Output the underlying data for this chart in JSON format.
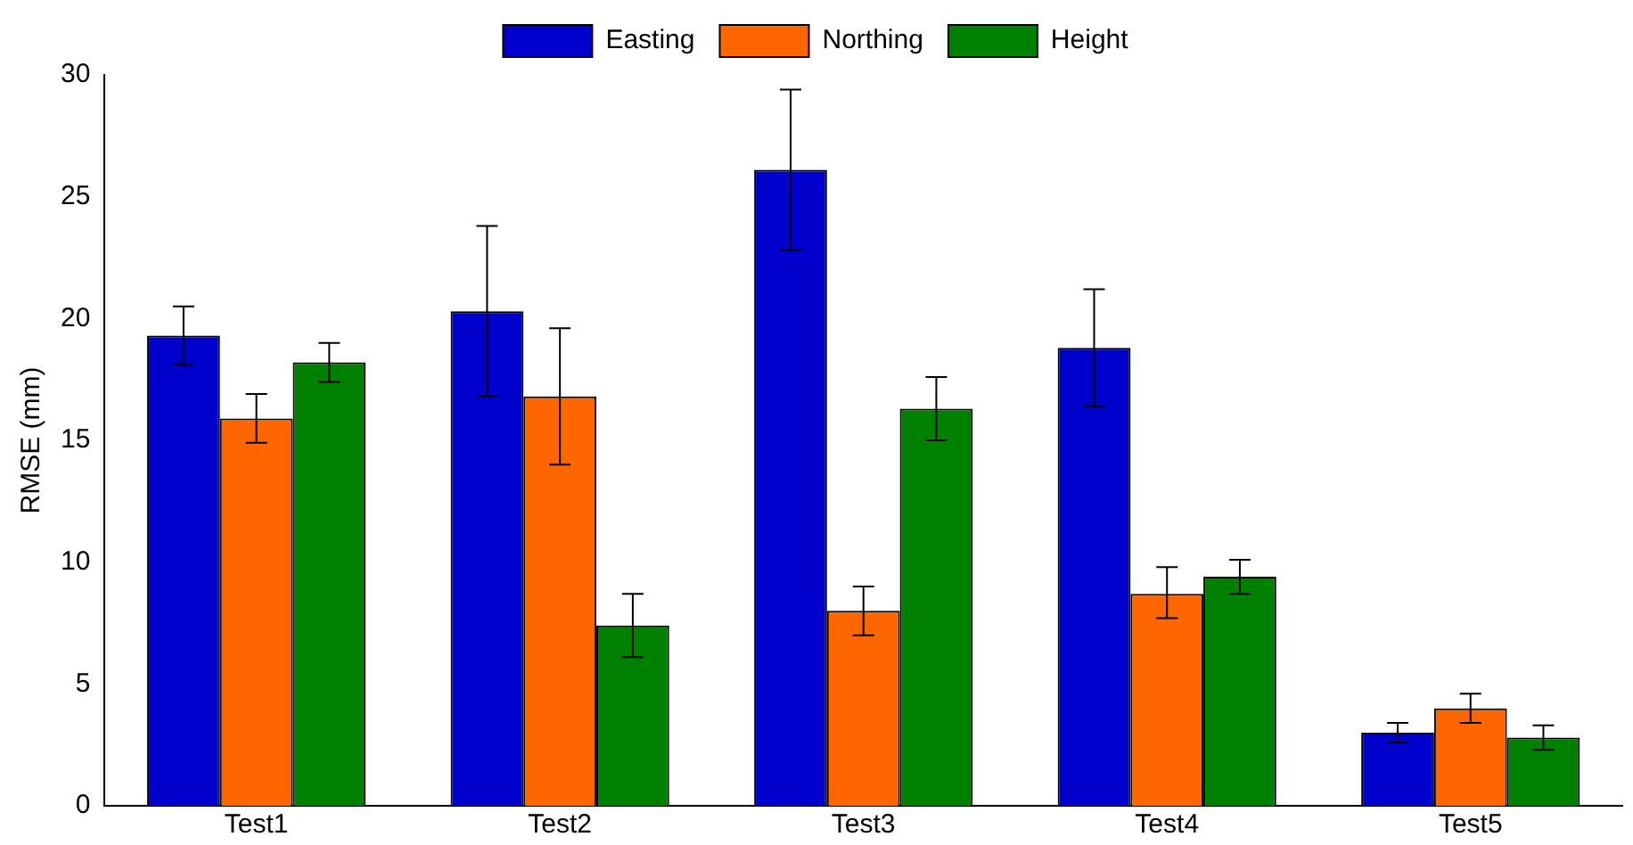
{
  "chart_data": {
    "type": "bar",
    "ylabel": "RMSE (mm)",
    "categories": [
      "Test1",
      "Test2",
      "Test3",
      "Test4",
      "Test5"
    ],
    "series": [
      {
        "name": "Easting",
        "color": "#0000cc",
        "values": [
          19.3,
          20.3,
          26.1,
          18.8,
          3.0
        ],
        "errors": [
          [
            18.1,
            20.5
          ],
          [
            16.8,
            23.8
          ],
          [
            22.8,
            29.4
          ],
          [
            16.4,
            21.2
          ],
          [
            2.6,
            3.4
          ]
        ]
      },
      {
        "name": "Northing",
        "color": "#ff6600",
        "values": [
          15.9,
          16.8,
          8.0,
          8.7,
          4.0
        ],
        "errors": [
          [
            14.9,
            16.9
          ],
          [
            14.0,
            19.6
          ],
          [
            7.0,
            9.0
          ],
          [
            7.7,
            9.8
          ],
          [
            3.4,
            4.6
          ]
        ]
      },
      {
        "name": "Height",
        "color": "#008000",
        "values": [
          18.2,
          7.4,
          16.3,
          9.4,
          2.8
        ],
        "errors": [
          [
            17.4,
            19.0
          ],
          [
            6.1,
            8.7
          ],
          [
            15.0,
            17.6
          ],
          [
            8.7,
            10.1
          ],
          [
            2.3,
            3.3
          ]
        ]
      }
    ],
    "ylim": [
      0,
      30
    ],
    "yticks": [
      0,
      5,
      10,
      15,
      20,
      25,
      30
    ],
    "grid": false,
    "legend": "top"
  }
}
